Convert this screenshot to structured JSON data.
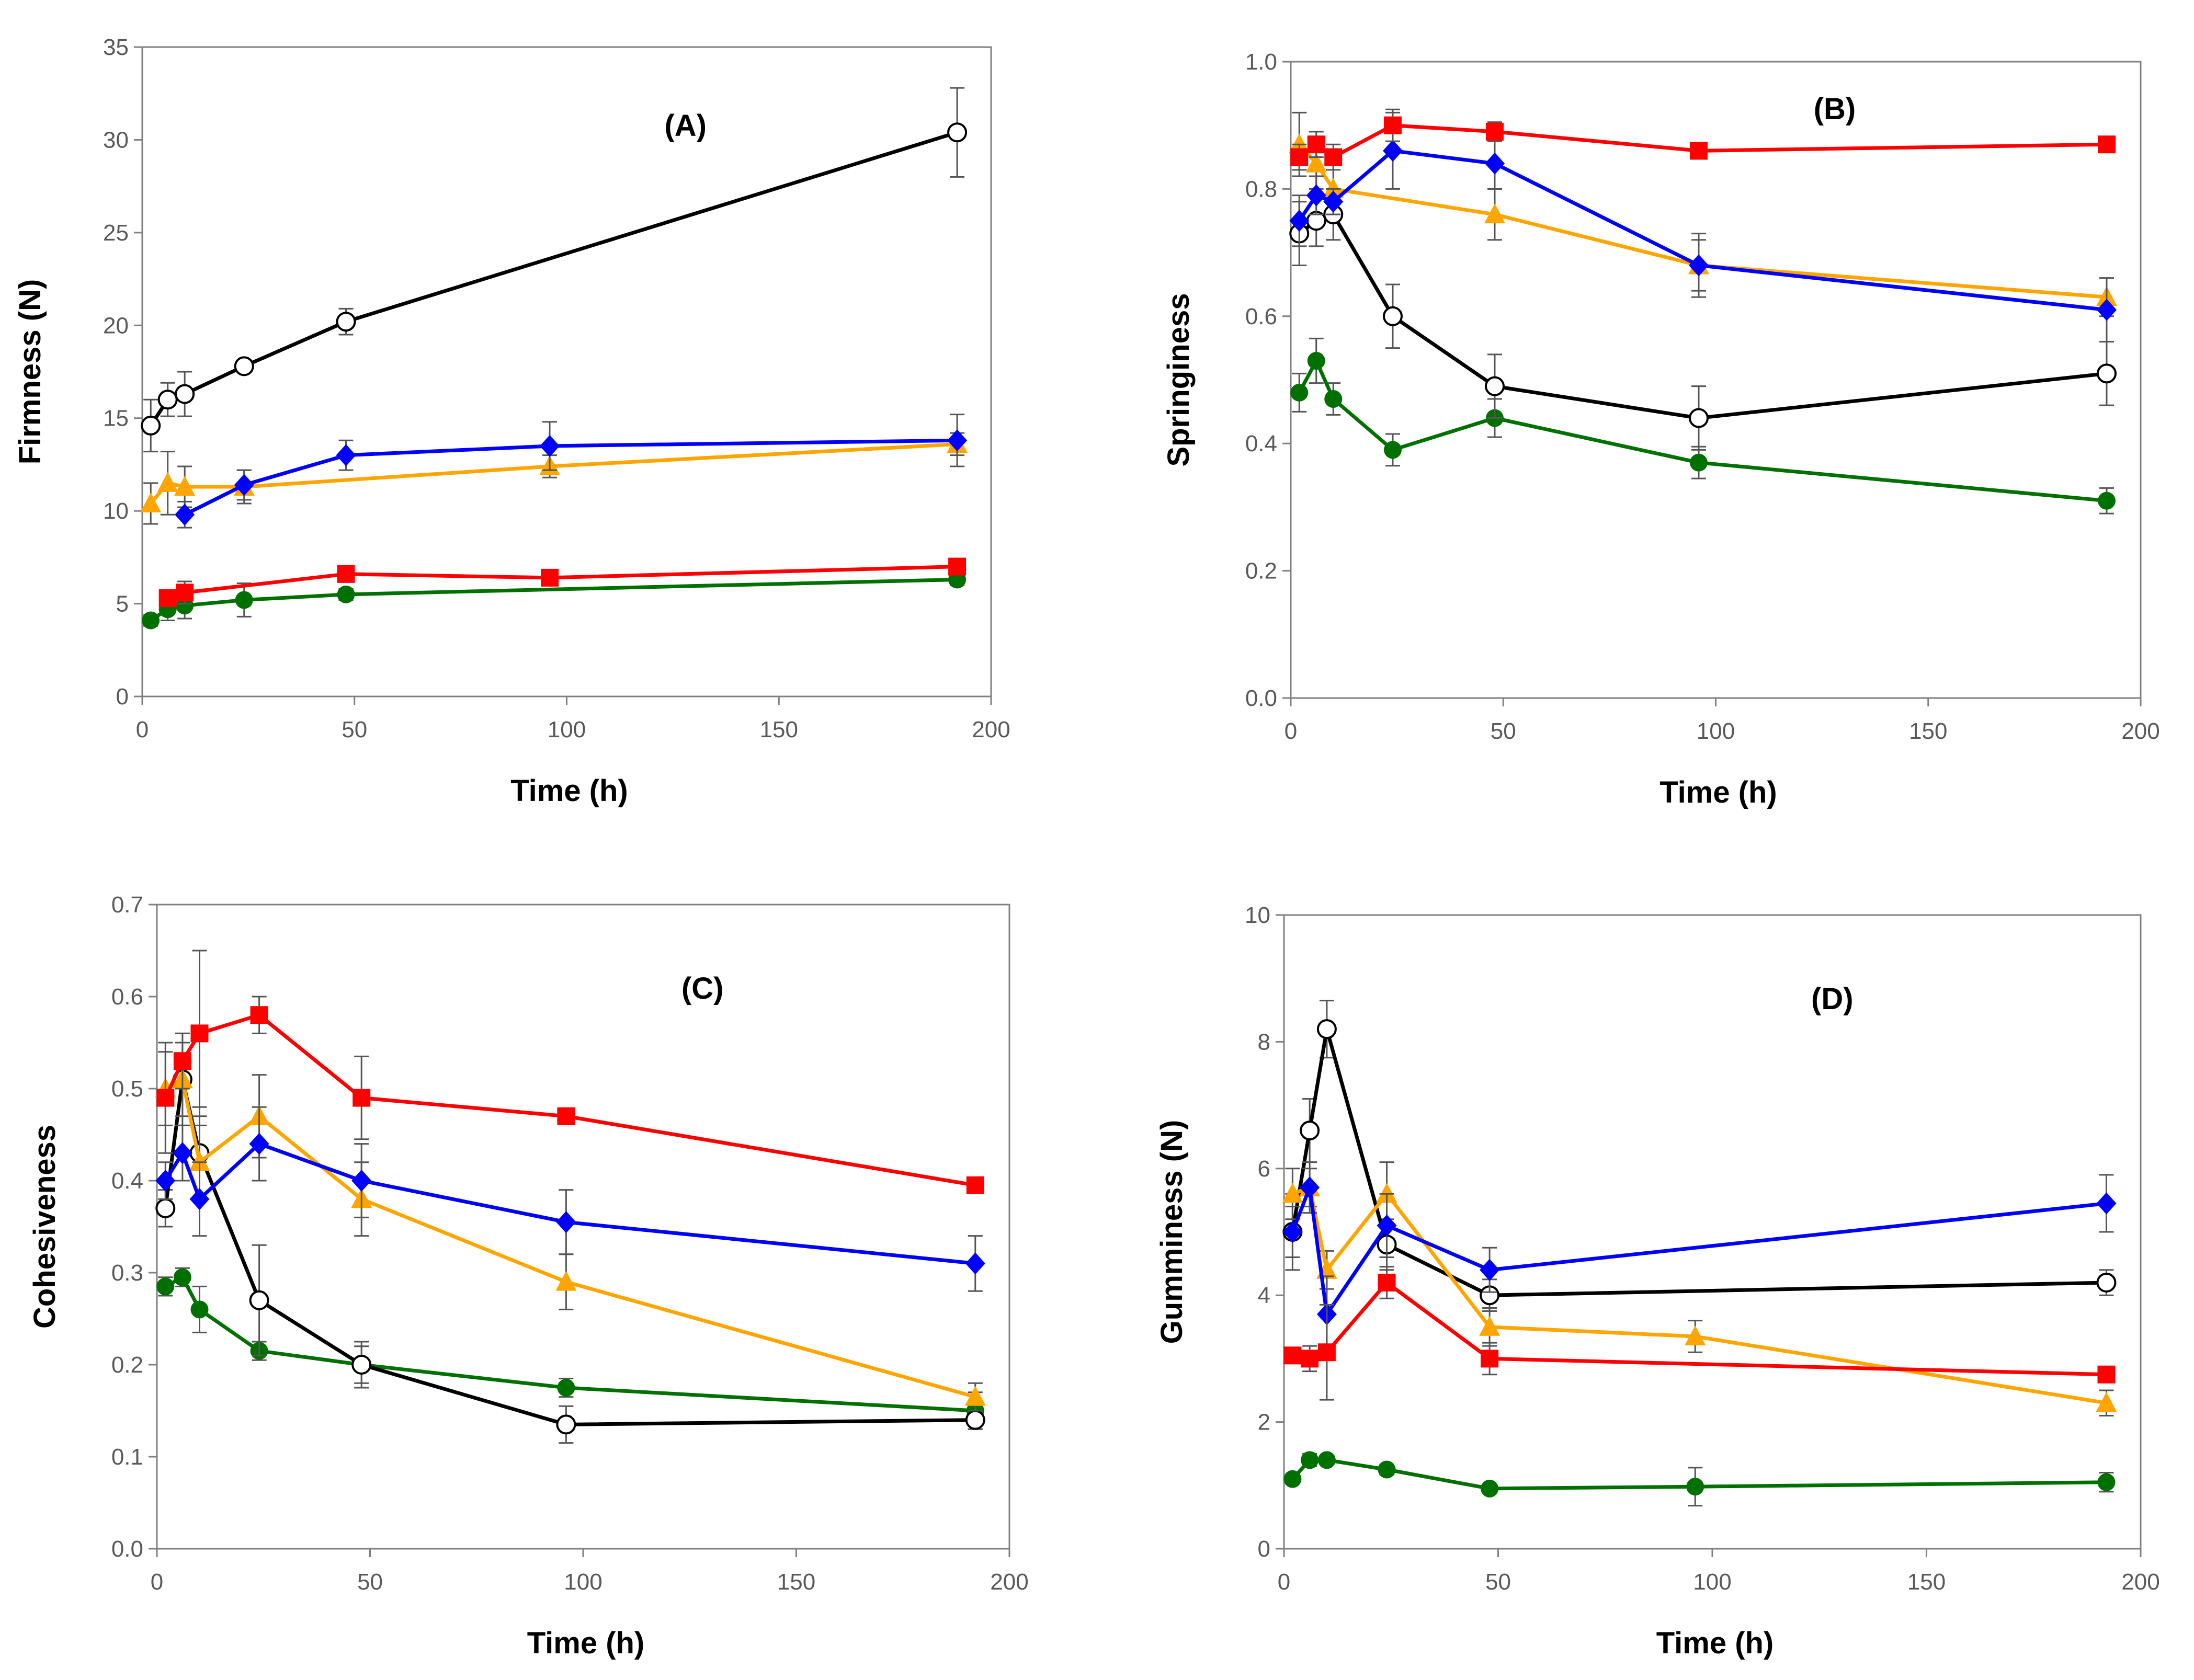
{
  "colors": {
    "black": "#000000",
    "red": "#ff0000",
    "blue": "#0000ff",
    "orange": "#ffa500",
    "green": "#007000"
  },
  "chart_data": [
    {
      "id": "A",
      "type": "line",
      "title": "(A)",
      "xlabel": "Time (h)",
      "ylabel": "Firmness (N)",
      "xlim": [
        0,
        200
      ],
      "ylim": [
        0,
        35
      ],
      "xticks": [
        0,
        50,
        100,
        150,
        200
      ],
      "yticks": [
        0,
        5,
        10,
        15,
        20,
        25,
        30,
        35
      ],
      "ytick_labels": [
        "0",
        "5",
        "10",
        "15",
        "20",
        "25",
        "30",
        "35"
      ],
      "series": [
        {
          "name": "black-open-circle",
          "color": "black",
          "marker": "circle-open",
          "x": [
            2,
            6,
            10,
            24,
            48,
            192
          ],
          "y": [
            14.6,
            16.0,
            16.3,
            17.8,
            20.2,
            30.4
          ],
          "err": [
            1.4,
            0.9,
            1.2,
            0.3,
            0.7,
            2.4
          ]
        },
        {
          "name": "blue-diamond",
          "color": "blue",
          "marker": "diamond",
          "x": [
            10,
            24,
            48,
            96,
            192
          ],
          "y": [
            9.8,
            11.4,
            13.0,
            13.5,
            13.8
          ],
          "err": [
            0.7,
            0.8,
            0.8,
            1.3,
            1.4
          ]
        },
        {
          "name": "orange-triangle",
          "color": "orange",
          "marker": "triangle",
          "x": [
            2,
            6,
            10,
            24,
            96,
            192
          ],
          "y": [
            10.4,
            11.5,
            11.3,
            11.3,
            12.4,
            13.6
          ],
          "err": [
            1.1,
            1.7,
            1.1,
            0.9,
            0.6,
            0.6
          ]
        },
        {
          "name": "red-square",
          "color": "red",
          "marker": "square",
          "x": [
            6,
            10,
            48,
            96,
            192
          ],
          "y": [
            5.3,
            5.6,
            6.6,
            6.4,
            7.0
          ],
          "err": [
            0.4,
            0.6,
            0.3,
            0.2,
            0.3
          ]
        },
        {
          "name": "green-circle",
          "color": "green",
          "marker": "circle",
          "x": [
            2,
            6,
            10,
            24,
            48,
            192
          ],
          "y": [
            4.1,
            4.7,
            4.9,
            5.2,
            5.5,
            6.3
          ],
          "err": [
            0.3,
            0.6,
            0.7,
            0.9,
            0.3,
            0.3
          ]
        }
      ]
    },
    {
      "id": "B",
      "type": "line",
      "title": "(B)",
      "xlabel": "Time (h)",
      "ylabel": "Springiness",
      "xlim": [
        0,
        200
      ],
      "ylim": [
        0,
        1
      ],
      "xticks": [
        0,
        50,
        100,
        150,
        200
      ],
      "yticks": [
        0,
        0.2,
        0.4,
        0.6,
        0.8,
        1.0
      ],
      "ytick_labels": [
        "0.0",
        "0.2",
        "0.4",
        "0.6",
        "0.8",
        "1.0"
      ],
      "series": [
        {
          "name": "black-open-circle",
          "color": "black",
          "marker": "circle-open",
          "x": [
            2,
            6,
            10,
            24,
            48,
            96,
            192
          ],
          "y": [
            0.73,
            0.75,
            0.76,
            0.6,
            0.49,
            0.44,
            0.51
          ],
          "err": [
            0.05,
            0.04,
            0.04,
            0.05,
            0.05,
            0.05,
            0.05
          ]
        },
        {
          "name": "blue-diamond",
          "color": "blue",
          "marker": "diamond",
          "x": [
            2,
            6,
            10,
            24,
            48,
            96,
            192
          ],
          "y": [
            0.75,
            0.79,
            0.78,
            0.86,
            0.84,
            0.68,
            0.61
          ],
          "err": [
            0.04,
            0.03,
            0.02,
            0.06,
            0.04,
            0.05,
            0.05
          ]
        },
        {
          "name": "orange-triangle",
          "color": "orange",
          "marker": "triangle",
          "x": [
            2,
            6,
            10,
            48,
            96,
            192
          ],
          "y": [
            0.87,
            0.84,
            0.8,
            0.76,
            0.68,
            0.63
          ],
          "err": [
            0.05,
            0.04,
            0.04,
            0.04,
            0.04,
            0.03
          ]
        },
        {
          "name": "red-square",
          "color": "red",
          "marker": "square",
          "x": [
            2,
            6,
            10,
            24,
            48,
            96,
            192
          ],
          "y": [
            0.85,
            0.87,
            0.85,
            0.9,
            0.89,
            0.86,
            0.87
          ],
          "err": [
            0.02,
            0.02,
            0.02,
            0.025,
            0.015,
            0.01,
            0.01
          ]
        },
        {
          "name": "green-circle",
          "color": "green",
          "marker": "circle",
          "x": [
            2,
            6,
            10,
            24,
            48,
            96,
            192
          ],
          "y": [
            0.48,
            0.53,
            0.47,
            0.39,
            0.44,
            0.37,
            0.31
          ],
          "err": [
            0.03,
            0.035,
            0.025,
            0.025,
            0.03,
            0.025,
            0.02
          ]
        }
      ]
    },
    {
      "id": "C",
      "type": "line",
      "title": "(C)",
      "xlabel": "Time (h)",
      "ylabel": "Cohesiveness",
      "xlim": [
        0,
        200
      ],
      "ylim": [
        0,
        0.7
      ],
      "xticks": [
        0,
        50,
        100,
        150,
        200
      ],
      "yticks": [
        0,
        0.1,
        0.2,
        0.3,
        0.4,
        0.5,
        0.6,
        0.7
      ],
      "ytick_labels": [
        "0.0",
        "0.1",
        "0.2",
        "0.3",
        "0.4",
        "0.5",
        "0.6",
        "0.7"
      ],
      "series": [
        {
          "name": "black-open-circle",
          "color": "black",
          "marker": "circle-open",
          "x": [
            2,
            6,
            10,
            24,
            48,
            96,
            192
          ],
          "y": [
            0.37,
            0.51,
            0.43,
            0.27,
            0.2,
            0.135,
            0.14
          ],
          "err": [
            0.02,
            0.05,
            0.05,
            0.06,
            0.02,
            0.02,
            0.01
          ]
        },
        {
          "name": "blue-diamond",
          "color": "blue",
          "marker": "diamond",
          "x": [
            2,
            6,
            10,
            24,
            48,
            96,
            192
          ],
          "y": [
            0.4,
            0.43,
            0.38,
            0.44,
            0.4,
            0.355,
            0.31
          ],
          "err": [
            0.02,
            0.03,
            0.04,
            0.04,
            0.04,
            0.035,
            0.03
          ]
        },
        {
          "name": "orange-triangle",
          "color": "orange",
          "marker": "triangle",
          "x": [
            2,
            6,
            10,
            24,
            48,
            96,
            192
          ],
          "y": [
            0.5,
            0.51,
            0.42,
            0.47,
            0.38,
            0.29,
            0.165
          ],
          "err": [
            0.04,
            0.04,
            0.04,
            0.045,
            0.04,
            0.03,
            0.015
          ]
        },
        {
          "name": "red-square",
          "color": "red",
          "marker": "square",
          "x": [
            2,
            6,
            10,
            24,
            48,
            96,
            192
          ],
          "y": [
            0.49,
            0.53,
            0.56,
            0.58,
            0.49,
            0.47,
            0.395
          ],
          "err": [
            0.06,
            0.03,
            0.09,
            0.02,
            0.045,
            0.005,
            0.005
          ]
        },
        {
          "name": "green-circle",
          "color": "green",
          "marker": "circle",
          "x": [
            2,
            6,
            10,
            24,
            48,
            96,
            192
          ],
          "y": [
            0.285,
            0.295,
            0.26,
            0.215,
            0.2,
            0.175,
            0.15
          ],
          "err": [
            0.01,
            0.01,
            0.025,
            0.01,
            0.025,
            0.01,
            0.02
          ]
        }
      ]
    },
    {
      "id": "D",
      "type": "line",
      "title": "(D)",
      "xlabel": "Time (h)",
      "ylabel": "Gumminess (N)",
      "xlim": [
        0,
        200
      ],
      "ylim": [
        0,
        10
      ],
      "xticks": [
        0,
        50,
        100,
        150,
        200
      ],
      "yticks": [
        0,
        2,
        4,
        6,
        8,
        10
      ],
      "ytick_labels": [
        "0",
        "2",
        "4",
        "6",
        "8",
        "10"
      ],
      "series": [
        {
          "name": "black-open-circle",
          "color": "black",
          "marker": "circle-open",
          "x": [
            2,
            6,
            10,
            24,
            48,
            192
          ],
          "y": [
            5.0,
            6.6,
            8.2,
            4.8,
            4.0,
            4.2
          ],
          "err": [
            0.6,
            0.5,
            0.45,
            0.4,
            0.25,
            0.2
          ]
        },
        {
          "name": "blue-diamond",
          "color": "blue",
          "marker": "diamond",
          "x": [
            2,
            6,
            10,
            24,
            48,
            192
          ],
          "y": [
            5.0,
            5.7,
            3.7,
            5.1,
            4.4,
            5.45
          ],
          "err": [
            0.4,
            0.4,
            0.6,
            0.5,
            0.35,
            0.45
          ]
        },
        {
          "name": "orange-triangle",
          "color": "orange",
          "marker": "triangle",
          "x": [
            2,
            6,
            10,
            24,
            48,
            96,
            192
          ],
          "y": [
            5.6,
            5.7,
            4.4,
            5.6,
            3.5,
            3.35,
            2.3
          ],
          "err": [
            0.4,
            0.3,
            0.3,
            0.5,
            0.3,
            0.25,
            0.2
          ]
        },
        {
          "name": "red-square",
          "color": "red",
          "marker": "square",
          "x": [
            2,
            6,
            10,
            24,
            48,
            192
          ],
          "y": [
            3.05,
            3.0,
            3.1,
            4.2,
            3.0,
            2.75
          ],
          "err": [
            0.1,
            0.2,
            0.75,
            0.25,
            0.25,
            0.1
          ]
        },
        {
          "name": "green-circle",
          "color": "green",
          "marker": "circle",
          "x": [
            2,
            6,
            10,
            24,
            48,
            96,
            192
          ],
          "y": [
            1.1,
            1.4,
            1.4,
            1.25,
            0.95,
            0.98,
            1.05
          ],
          "err": [
            0.05,
            0.1,
            0.05,
            0.08,
            0.05,
            0.3,
            0.15
          ]
        }
      ]
    }
  ]
}
